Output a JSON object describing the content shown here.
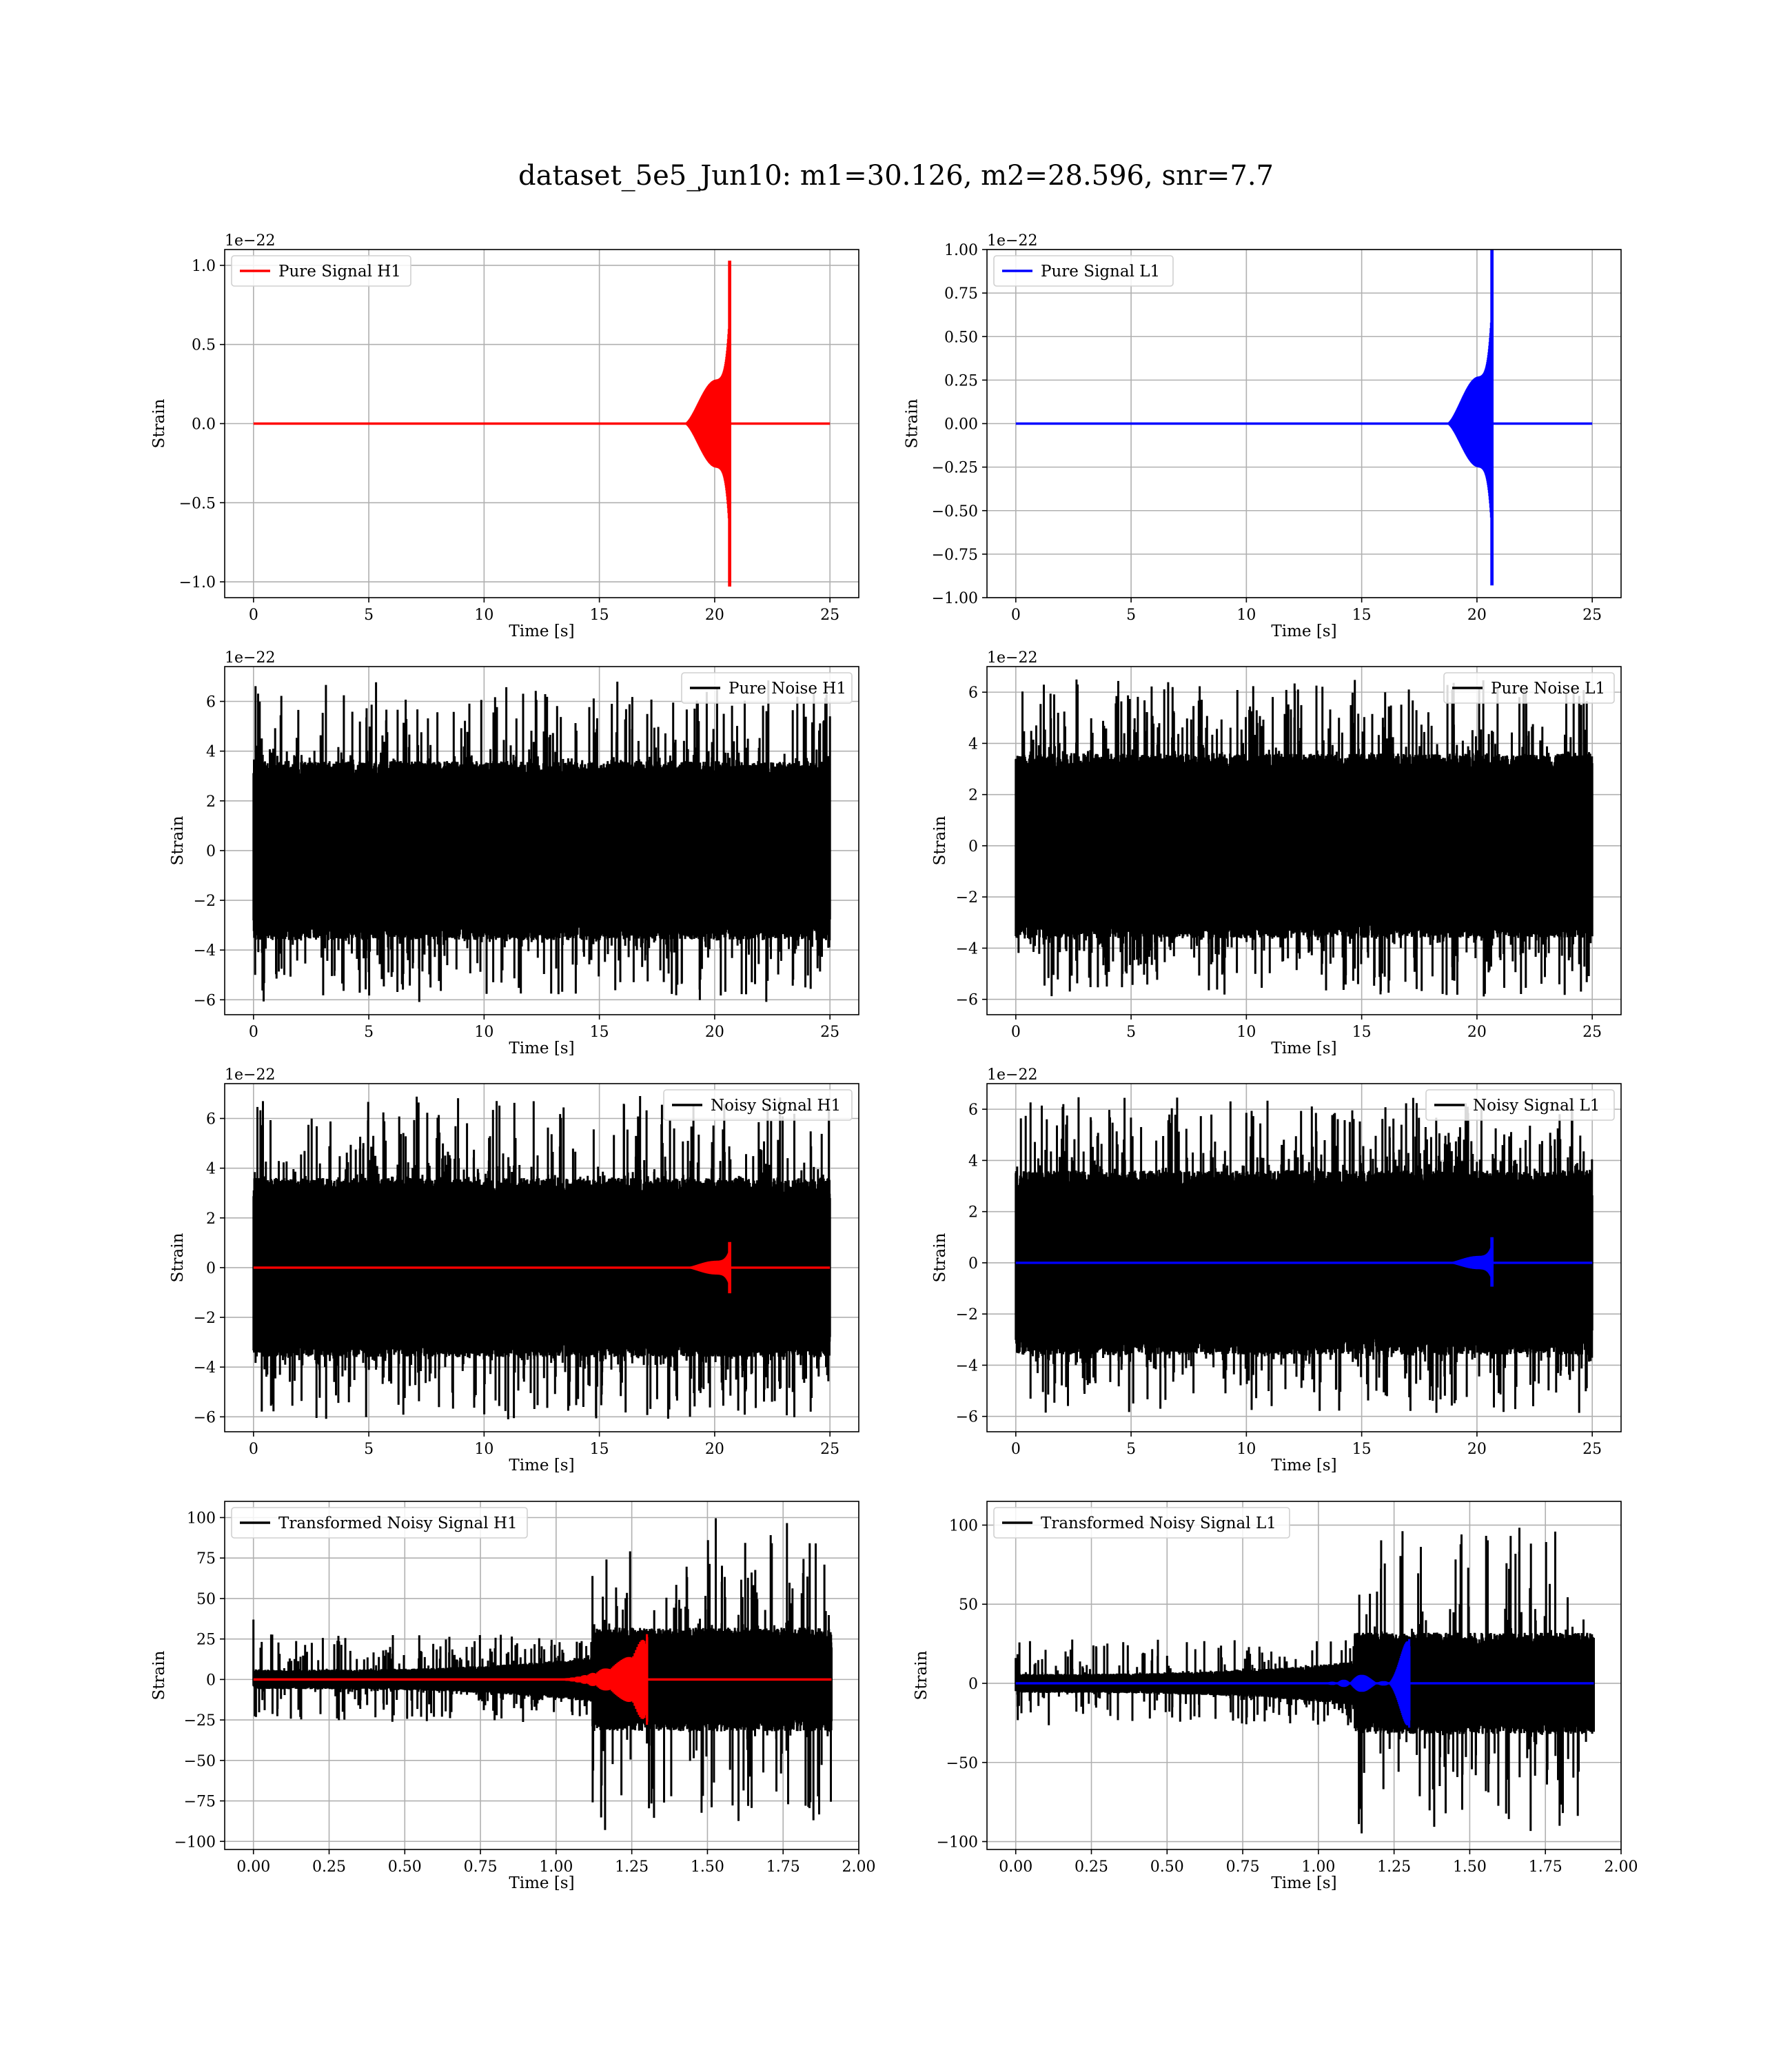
{
  "figure": {
    "title": "dataset_5e5_Jun10: m1=30.126, m2=28.596, snr=7.7"
  },
  "chart_data": [
    {
      "type": "line",
      "legend": {
        "entries": [
          "Pure Signal H1"
        ],
        "placement": "upper-left"
      },
      "xlabel": "Time [s]",
      "ylabel": "Strain",
      "y_offset_label": "1e−22",
      "xlim": [
        -1.25,
        26.25
      ],
      "ylim": [
        -1.1,
        1.1
      ],
      "xticks": [
        0,
        5,
        10,
        15,
        20,
        25
      ],
      "yticks": [
        -1.0,
        -0.5,
        0.0,
        0.5,
        1.0
      ],
      "ytick_labels": [
        "−1.0",
        "−0.5",
        "0.0",
        "0.5",
        "1.0"
      ],
      "grid": true,
      "series": [
        {
          "name": "Pure Signal H1",
          "color": "#ff0000",
          "kind": "chirp",
          "x_range": [
            0,
            25
          ],
          "merger_time": 20.65,
          "peak_amplitude": 1.03,
          "min_amplitude": -1.03,
          "onset_time": 18.7
        }
      ]
    },
    {
      "type": "line",
      "legend": {
        "entries": [
          "Pure Signal L1"
        ],
        "placement": "upper-left"
      },
      "xlabel": "Time [s]",
      "ylabel": "Strain",
      "y_offset_label": "1e−22",
      "xlim": [
        -1.25,
        26.25
      ],
      "ylim": [
        -1.0,
        1.0
      ],
      "xticks": [
        0,
        5,
        10,
        15,
        20,
        25
      ],
      "yticks": [
        -1.0,
        -0.75,
        -0.5,
        -0.25,
        0.0,
        0.25,
        0.5,
        0.75,
        1.0
      ],
      "ytick_labels": [
        "−1.00",
        "−0.75",
        "−0.50",
        "−0.25",
        "0.00",
        "0.25",
        "0.50",
        "0.75",
        "1.00"
      ],
      "grid": true,
      "series": [
        {
          "name": "Pure Signal L1",
          "color": "#0000ff",
          "kind": "chirp",
          "x_range": [
            0,
            25
          ],
          "merger_time": 20.65,
          "peak_amplitude": 1.0,
          "min_amplitude": -0.93,
          "onset_time": 18.7
        }
      ]
    },
    {
      "type": "line",
      "legend": {
        "entries": [
          "Pure Noise H1"
        ],
        "placement": "upper-right"
      },
      "xlabel": "Time [s]",
      "ylabel": "Strain",
      "y_offset_label": "1e−22",
      "xlim": [
        -1.25,
        26.25
      ],
      "ylim": [
        -6.6,
        7.4
      ],
      "xticks": [
        0,
        5,
        10,
        15,
        20,
        25
      ],
      "yticks": [
        -6,
        -4,
        -2,
        0,
        2,
        4,
        6
      ],
      "ytick_labels": [
        "−6",
        "−4",
        "−2",
        "0",
        "2",
        "4",
        "6"
      ],
      "grid": true,
      "series": [
        {
          "name": "Pure Noise H1",
          "color": "#000000",
          "kind": "noise",
          "x_range": [
            0,
            25
          ],
          "band": 3.6,
          "peak_max": 6.9,
          "peak_min": -6.1
        }
      ]
    },
    {
      "type": "line",
      "legend": {
        "entries": [
          "Pure Noise L1"
        ],
        "placement": "upper-right"
      },
      "xlabel": "Time [s]",
      "ylabel": "Strain",
      "y_offset_label": "1e−22",
      "xlim": [
        -1.25,
        26.25
      ],
      "ylim": [
        -6.6,
        7.0
      ],
      "xticks": [
        0,
        5,
        10,
        15,
        20,
        25
      ],
      "yticks": [
        -6,
        -4,
        -2,
        0,
        2,
        4,
        6
      ],
      "ytick_labels": [
        "−6",
        "−4",
        "−2",
        "0",
        "2",
        "4",
        "6"
      ],
      "grid": true,
      "series": [
        {
          "name": "Pure Noise L1",
          "color": "#000000",
          "kind": "noise",
          "x_range": [
            0,
            25
          ],
          "band": 3.6,
          "peak_max": 6.5,
          "peak_min": -5.9
        }
      ]
    },
    {
      "type": "line",
      "legend": {
        "entries": [
          "Noisy Signal H1"
        ],
        "placement": "upper-right"
      },
      "xlabel": "Time [s]",
      "ylabel": "Strain",
      "y_offset_label": "1e−22",
      "xlim": [
        -1.25,
        26.25
      ],
      "ylim": [
        -6.6,
        7.4
      ],
      "xticks": [
        0,
        5,
        10,
        15,
        20,
        25
      ],
      "yticks": [
        -6,
        -4,
        -2,
        0,
        2,
        4,
        6
      ],
      "ytick_labels": [
        "−6",
        "−4",
        "−2",
        "0",
        "2",
        "4",
        "6"
      ],
      "grid": true,
      "series": [
        {
          "name": "Noisy Signal H1",
          "color": "#000000",
          "kind": "noise",
          "x_range": [
            0,
            25
          ],
          "band": 3.6,
          "peak_max": 6.9,
          "peak_min": -6.1
        },
        {
          "color": "#ff0000",
          "kind": "chirp",
          "x_range": [
            0,
            25
          ],
          "merger_time": 20.65,
          "peak_amplitude": 1.03,
          "min_amplitude": -1.03,
          "onset_time": 18.7
        }
      ]
    },
    {
      "type": "line",
      "legend": {
        "entries": [
          "Noisy Signal L1"
        ],
        "placement": "upper-right"
      },
      "xlabel": "Time [s]",
      "ylabel": "Strain",
      "y_offset_label": "1e−22",
      "xlim": [
        -1.25,
        26.25
      ],
      "ylim": [
        -6.6,
        7.0
      ],
      "xticks": [
        0,
        5,
        10,
        15,
        20,
        25
      ],
      "yticks": [
        -6,
        -4,
        -2,
        0,
        2,
        4,
        6
      ],
      "ytick_labels": [
        "−6",
        "−4",
        "−2",
        "0",
        "2",
        "4",
        "6"
      ],
      "grid": true,
      "series": [
        {
          "name": "Noisy Signal L1",
          "color": "#000000",
          "kind": "noise",
          "x_range": [
            0,
            25
          ],
          "band": 3.6,
          "peak_max": 6.5,
          "peak_min": -5.9
        },
        {
          "color": "#0000ff",
          "kind": "chirp",
          "x_range": [
            0,
            25
          ],
          "merger_time": 20.65,
          "peak_amplitude": 1.0,
          "min_amplitude": -0.93,
          "onset_time": 18.7
        }
      ]
    },
    {
      "type": "line",
      "legend": {
        "entries": [
          "Transformed Noisy Signal H1"
        ],
        "placement": "upper-left"
      },
      "xlabel": "Time [s]",
      "ylabel": "Strain",
      "xlim": [
        -0.095,
        2.0
      ],
      "ylim": [
        -105,
        110
      ],
      "xticks": [
        0.0,
        0.25,
        0.5,
        0.75,
        1.0,
        1.25,
        1.5,
        1.75,
        2.0
      ],
      "xtick_labels": [
        "0.00",
        "0.25",
        "0.50",
        "0.75",
        "1.00",
        "1.25",
        "1.50",
        "1.75",
        "2.00"
      ],
      "yticks": [
        -100,
        -75,
        -50,
        -25,
        0,
        25,
        50,
        75,
        100
      ],
      "ytick_labels": [
        "−100",
        "−75",
        "−50",
        "−25",
        "0",
        "25",
        "50",
        "75",
        "100"
      ],
      "grid": true,
      "series": [
        {
          "name": "Transformed Noisy Signal H1",
          "color": "#000000",
          "kind": "whitened",
          "x_range": [
            0,
            1.91
          ],
          "band_early": 6,
          "band_late": 32,
          "step_time": 1.12,
          "peak_max": 100,
          "peak_min": -95,
          "spike_at_zero": 37
        },
        {
          "color": "#ff0000",
          "kind": "chirp",
          "x_range": [
            0,
            1.91
          ],
          "merger_time": 1.3,
          "peak_amplitude": 28,
          "min_amplitude": -28,
          "onset_time": 0.9
        }
      ]
    },
    {
      "type": "line",
      "legend": {
        "entries": [
          "Transformed Noisy Signal L1"
        ],
        "placement": "upper-left"
      },
      "xlabel": "Time [s]",
      "ylabel": "Strain",
      "xlim": [
        -0.095,
        2.0
      ],
      "ylim": [
        -105,
        115
      ],
      "xticks": [
        0.0,
        0.25,
        0.5,
        0.75,
        1.0,
        1.25,
        1.5,
        1.75,
        2.0
      ],
      "xtick_labels": [
        "0.00",
        "0.25",
        "0.50",
        "0.75",
        "1.00",
        "1.25",
        "1.50",
        "1.75",
        "2.00"
      ],
      "yticks": [
        -100,
        -50,
        0,
        50,
        100
      ],
      "ytick_labels": [
        "−100",
        "−50",
        "0",
        "50",
        "100"
      ],
      "grid": true,
      "series": [
        {
          "name": "Transformed Noisy Signal L1",
          "color": "#000000",
          "kind": "whitened",
          "x_range": [
            0,
            1.91
          ],
          "band_early": 6,
          "band_late": 32,
          "step_time": 1.12,
          "peak_max": 100,
          "peak_min": -95,
          "spike_at_zero": 16
        },
        {
          "color": "#0000ff",
          "kind": "chirp",
          "x_range": [
            0,
            1.91
          ],
          "merger_time": 1.3,
          "peak_amplitude": 28,
          "min_amplitude": -28,
          "onset_time": 0.9
        }
      ]
    }
  ]
}
